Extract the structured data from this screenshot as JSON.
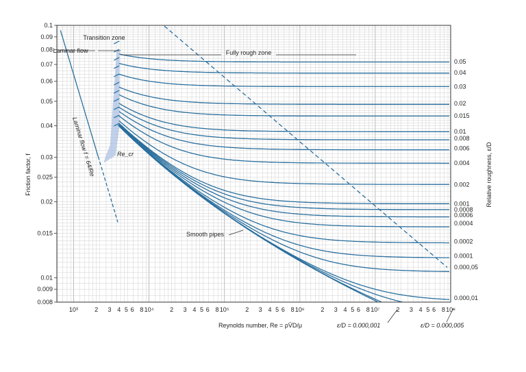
{
  "chart_data": {
    "type": "line",
    "title": "",
    "xlabel": "Reynolds number, Re = ρV̄D/μ",
    "ylabel": "Friction factor, f",
    "y2label": "Relative roughness, ε/D",
    "x_scale": "log",
    "y_scale": "log",
    "xlim": [
      600,
      100000000
    ],
    "ylim": [
      0.008,
      0.1
    ],
    "grid": true,
    "colors": {
      "curve": "#2a6f9e",
      "grid": "#cfcfcf",
      "grid_major": "#b4b4b4",
      "shade": "#a9bfe3",
      "axis": "#333333",
      "text": "#222222"
    },
    "y_ticks": [
      "0.1",
      "0.09",
      "0.08",
      "0.07",
      "0.06",
      "0.05",
      "0.04",
      "0.03",
      "0.025",
      "0.02",
      "0.015",
      "0.01",
      "0.009",
      "0.008"
    ],
    "y_tick_values": [
      0.1,
      0.09,
      0.08,
      0.07,
      0.06,
      0.05,
      0.04,
      0.03,
      0.025,
      0.02,
      0.015,
      0.01,
      0.009,
      0.008
    ],
    "x_tick_rows": [
      {
        "decade_label": "10³",
        "minor": "2  3  4 5 6  8"
      },
      {
        "decade_label": "10⁴",
        "minor": "2  3  4 5 6  8"
      },
      {
        "decade_label": "10⁵",
        "minor": "2  3  4 5 6  8"
      },
      {
        "decade_label": "10⁶",
        "minor": "2  3  4 5 6  8"
      },
      {
        "decade_label": "10⁷",
        "minor": "2  3  4 5 6  8"
      },
      {
        "decade_label": "10⁸",
        "minor": ""
      }
    ],
    "roughness_labels": [
      {
        "label": "0.05",
        "f": 0.0717
      },
      {
        "label": "0.04",
        "f": 0.0649
      },
      {
        "label": "0.03",
        "f": 0.0572
      },
      {
        "label": "0.02",
        "f": 0.0491
      },
      {
        "label": "0.015",
        "f": 0.0438
      },
      {
        "label": "0.01",
        "f": 0.038
      },
      {
        "label": "0.008",
        "f": 0.0356
      },
      {
        "label": "0.006",
        "f": 0.0326
      },
      {
        "label": "0.004",
        "f": 0.0285
      },
      {
        "label": "0.002",
        "f": 0.0234
      },
      {
        "label": "0.001",
        "f": 0.0196
      },
      {
        "label": "0.0008",
        "f": 0.0186
      },
      {
        "label": "0.0006",
        "f": 0.0177
      },
      {
        "label": "0.0004",
        "f": 0.0164
      },
      {
        "label": "0.0002",
        "f": 0.0139
      },
      {
        "label": "0.0001",
        "f": 0.0122
      },
      {
        "label": "0.000,05",
        "f": 0.011
      },
      {
        "label": "0.000,01",
        "f": 0.0083
      }
    ],
    "series": [
      {
        "eps": 0.05
      },
      {
        "eps": 0.04
      },
      {
        "eps": 0.03
      },
      {
        "eps": 0.02
      },
      {
        "eps": 0.015
      },
      {
        "eps": 0.01
      },
      {
        "eps": 0.008
      },
      {
        "eps": 0.006
      },
      {
        "eps": 0.004
      },
      {
        "eps": 0.002
      },
      {
        "eps": 0.001
      },
      {
        "eps": 0.0008
      },
      {
        "eps": 0.0006
      },
      {
        "eps": 0.0004
      },
      {
        "eps": 0.0002
      },
      {
        "eps": 0.0001
      },
      {
        "eps": 5e-05
      },
      {
        "eps": 1e-05
      },
      {
        "eps": 5e-06
      },
      {
        "eps": 1e-06
      },
      {
        "name": "Smooth pipes",
        "eps": 0
      }
    ],
    "laminar_series": {
      "name": "Laminar flow f = 64/Re",
      "formula": "64/Re",
      "x_range": [
        640,
        4000
      ]
    },
    "annotations": {
      "laminar_zone": "Laminar flow",
      "transition_zone": "Transition zone",
      "rough_zone": "Fully rough zone",
      "laminar_line": "Laminar flow f = 64/Re",
      "recr": "Re_cr",
      "smooth": "Smooth pipes",
      "eps_1": "ε/D = 0.000,001",
      "eps_5": "ε/D = 0.000,005"
    },
    "recr_range": [
      2100,
      4000
    ]
  }
}
